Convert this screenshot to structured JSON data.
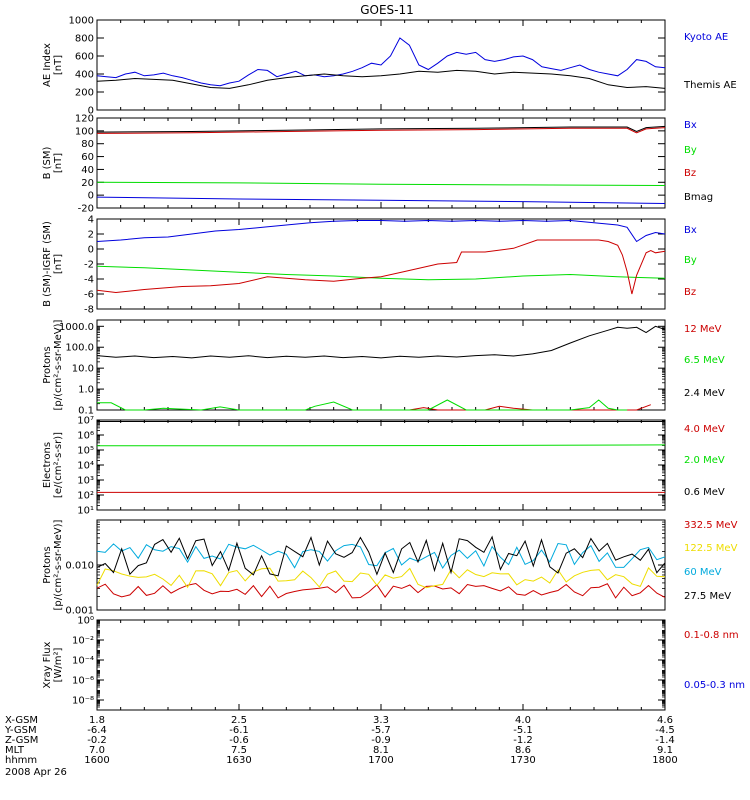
{
  "title": "GOES-11",
  "colors": {
    "black": "#000000",
    "blue": "#0000dd",
    "red": "#cc0000",
    "green": "#00dd00",
    "yellow": "#eedd00",
    "cyan": "#00aadd"
  },
  "chart_data": [
    {
      "type": "line",
      "id": "ae",
      "ylabel": [
        "AE Index",
        "[nT]"
      ],
      "ylim": [
        0,
        1000
      ],
      "scale": "linear",
      "yticks": [
        0,
        200,
        400,
        600,
        800,
        1000
      ],
      "yticklabels": [
        "0",
        "200",
        "400",
        "600",
        "800",
        "1000"
      ],
      "series": [
        {
          "name": "Kyoto AE",
          "color": "blue",
          "x": [
            0,
            2,
            4,
            6,
            8,
            10,
            12,
            14,
            16,
            18,
            20,
            22,
            24,
            26,
            28,
            30,
            32,
            34,
            36,
            38,
            40,
            42,
            44,
            46,
            48,
            50,
            52,
            54,
            56,
            58,
            60,
            62,
            64,
            66,
            68,
            70,
            72,
            74,
            76,
            78,
            80,
            82,
            84,
            86,
            88,
            90,
            92,
            94,
            96,
            98,
            100,
            102,
            104,
            106,
            108,
            110,
            112,
            114,
            116,
            118,
            120
          ],
          "y": [
            380,
            370,
            360,
            400,
            420,
            380,
            390,
            410,
            380,
            360,
            330,
            300,
            280,
            270,
            300,
            320,
            390,
            450,
            440,
            370,
            400,
            430,
            380,
            390,
            370,
            380,
            400,
            430,
            470,
            520,
            500,
            600,
            800,
            720,
            500,
            450,
            520,
            600,
            640,
            620,
            640,
            560,
            540,
            560,
            590,
            600,
            560,
            480,
            460,
            440,
            470,
            500,
            450,
            420,
            400,
            380,
            450,
            560,
            540,
            480,
            470
          ]
        },
        {
          "name": "Themis AE",
          "color": "black",
          "x": [
            0,
            4,
            8,
            12,
            16,
            20,
            24,
            28,
            32,
            36,
            40,
            44,
            48,
            52,
            56,
            60,
            64,
            68,
            72,
            76,
            80,
            84,
            88,
            92,
            96,
            100,
            104,
            108,
            112,
            116,
            120
          ],
          "y": [
            320,
            330,
            350,
            340,
            330,
            290,
            250,
            240,
            280,
            330,
            360,
            380,
            400,
            380,
            370,
            380,
            400,
            430,
            420,
            440,
            430,
            400,
            420,
            410,
            400,
            380,
            350,
            280,
            250,
            260,
            240
          ]
        }
      ]
    },
    {
      "type": "line",
      "id": "bsm",
      "ylabel": [
        "B (SM)",
        "[nT]"
      ],
      "ylim": [
        -20,
        120
      ],
      "scale": "linear",
      "yticks": [
        -20,
        0,
        20,
        40,
        60,
        80,
        100,
        120
      ],
      "yticklabels": [
        "-20",
        "0",
        "20",
        "40",
        "60",
        "80",
        "100",
        "120"
      ],
      "series": [
        {
          "name": "Bx",
          "color": "blue",
          "x": [
            0,
            30,
            60,
            90,
            120
          ],
          "y": [
            -3,
            -6,
            -8,
            -10,
            -13
          ]
        },
        {
          "name": "By",
          "color": "green",
          "x": [
            0,
            30,
            60,
            90,
            120
          ],
          "y": [
            20,
            19,
            17,
            16,
            15
          ]
        },
        {
          "name": "Bz",
          "color": "red",
          "x": [
            0,
            20,
            40,
            60,
            80,
            100,
            112,
            114,
            116,
            118,
            120
          ],
          "y": [
            96,
            97,
            99,
            101,
            102,
            104,
            104,
            97,
            103,
            104,
            105
          ]
        },
        {
          "name": "Bmag",
          "color": "black",
          "x": [
            0,
            20,
            40,
            60,
            80,
            100,
            112,
            114,
            116,
            118,
            120
          ],
          "y": [
            98,
            99,
            101,
            103,
            104,
            106,
            106,
            99,
            105,
            106,
            107
          ]
        }
      ]
    },
    {
      "type": "line",
      "id": "bigrf",
      "ylabel": [
        "B (SM)-IGRF (SM)",
        "[nT]"
      ],
      "ylim": [
        -8,
        4
      ],
      "scale": "linear",
      "yticks": [
        -8,
        -6,
        -4,
        -2,
        0,
        2,
        4
      ],
      "yticklabels": [
        "-8",
        "-6",
        "-4",
        "-2",
        "0",
        "2",
        "4"
      ],
      "series": [
        {
          "name": "Bx",
          "color": "blue",
          "x": [
            0,
            5,
            10,
            15,
            20,
            25,
            30,
            35,
            40,
            45,
            50,
            55,
            60,
            65,
            70,
            75,
            80,
            85,
            90,
            95,
            100,
            105,
            110,
            112,
            114,
            116,
            118,
            120
          ],
          "y": [
            1.0,
            1.2,
            1.5,
            1.6,
            2.0,
            2.4,
            2.6,
            2.9,
            3.2,
            3.5,
            3.7,
            3.8,
            3.8,
            3.7,
            3.8,
            3.7,
            3.8,
            3.7,
            3.8,
            3.7,
            3.8,
            3.5,
            3.2,
            2.9,
            1.0,
            1.8,
            2.2,
            2.0
          ]
        },
        {
          "name": "By",
          "color": "green",
          "x": [
            0,
            10,
            20,
            30,
            40,
            50,
            60,
            70,
            80,
            90,
            100,
            110,
            120
          ],
          "y": [
            -2.3,
            -2.5,
            -2.8,
            -3.1,
            -3.4,
            -3.6,
            -3.9,
            -4.1,
            -4.0,
            -3.6,
            -3.4,
            -3.7,
            -3.9
          ]
        },
        {
          "name": "Bz",
          "color": "red",
          "x": [
            0,
            4,
            10,
            18,
            24,
            30,
            36,
            44,
            50,
            56,
            60,
            65,
            72,
            76,
            77,
            82,
            88,
            93,
            100,
            104,
            106,
            108,
            110,
            111,
            112,
            113,
            114,
            116,
            117,
            118,
            120
          ],
          "y": [
            -5.5,
            -5.8,
            -5.4,
            -5.0,
            -4.9,
            -4.6,
            -3.7,
            -4.1,
            -4.3,
            -3.9,
            -3.7,
            -3.0,
            -2.0,
            -1.8,
            -0.4,
            -0.4,
            0.1,
            1.2,
            1.2,
            1.2,
            1.2,
            1.0,
            0.5,
            -0.8,
            -3.0,
            -6.0,
            -3.5,
            -0.5,
            -0.2,
            -0.5,
            -0.3
          ]
        }
      ]
    },
    {
      "type": "line",
      "id": "protons1",
      "ylabel": [
        "Protons",
        "[p/(cm²-s-sr-MeV)]"
      ],
      "ylim": [
        0.1,
        2000
      ],
      "scale": "log",
      "yticks": [
        0.1,
        1,
        10,
        100,
        1000
      ],
      "yticklabels": [
        "0.1",
        "1.0",
        "10.0",
        "100.0",
        "1000.0"
      ],
      "series": [
        {
          "name": "12 MeV",
          "color": "red",
          "x": [
            66,
            69,
            72,
            82,
            85,
            88,
            92,
            98,
            114,
            117
          ],
          "y": [
            0.1,
            0.13,
            0.1,
            0.1,
            0.15,
            0.12,
            0.1,
            0.1,
            0.1,
            0.18
          ]
        },
        {
          "name": "6.5 MeV",
          "color": "green",
          "x": [
            0,
            3,
            6,
            10,
            14,
            22,
            26,
            30,
            34,
            38,
            44,
            46,
            50,
            54,
            58,
            62,
            66,
            70,
            74,
            78,
            82,
            86,
            90,
            94,
            100,
            104,
            106,
            108,
            110,
            112
          ],
          "y": [
            0.22,
            0.22,
            0.1,
            0.1,
            0.12,
            0.1,
            0.14,
            0.1,
            0.1,
            0.1,
            0.1,
            0.15,
            0.24,
            0.1,
            0.1,
            0.1,
            0.1,
            0.1,
            0.3,
            0.1,
            0.1,
            0.1,
            0.1,
            0.1,
            0.1,
            0.13,
            0.3,
            0.12,
            0.1,
            0.1
          ]
        },
        {
          "name": "2.4 MeV",
          "color": "black",
          "x": [
            0,
            4,
            8,
            12,
            16,
            20,
            24,
            28,
            32,
            36,
            40,
            44,
            48,
            52,
            56,
            60,
            64,
            68,
            72,
            76,
            80,
            84,
            88,
            92,
            96,
            100,
            104,
            108,
            110,
            112,
            114,
            116,
            118,
            120
          ],
          "y": [
            40,
            33,
            38,
            32,
            36,
            31,
            38,
            33,
            39,
            32,
            37,
            33,
            38,
            32,
            36,
            31,
            37,
            33,
            38,
            34,
            40,
            44,
            38,
            48,
            70,
            160,
            350,
            650,
            900,
            800,
            900,
            500,
            1000,
            700
          ]
        }
      ]
    },
    {
      "type": "line",
      "id": "electrons",
      "ylabel": [
        "Electrons",
        "[e/(cm²-s-sr)]"
      ],
      "ylim": [
        10,
        10000000.0
      ],
      "scale": "log",
      "yticks": [
        10,
        100,
        1000,
        10000,
        100000,
        1000000,
        10000000
      ],
      "yticklabels": [
        "10¹",
        "10²",
        "10³",
        "10⁴",
        "10⁵",
        "10⁶",
        "10⁷"
      ],
      "series": [
        {
          "name": "4.0 MeV",
          "color": "red",
          "x": [
            0,
            120
          ],
          "y": [
            150,
            150
          ]
        },
        {
          "name": "2.0 MeV",
          "color": "green",
          "x": [
            0,
            40,
            80,
            120
          ],
          "y": [
            190000.0,
            190000.0,
            200000.0,
            220000.0
          ]
        },
        {
          "name": "0.6 MeV",
          "color": "black",
          "x": [
            0,
            120
          ],
          "y": [
            8000000.0,
            8000000.0
          ]
        }
      ]
    },
    {
      "type": "line",
      "id": "protons2",
      "ylabel": [
        "Protons",
        "[p/(cm²-s-sr-MeV)]"
      ],
      "ylim": [
        0.001,
        0.1
      ],
      "scale": "log",
      "yticks": [
        0.001,
        0.01
      ],
      "yticklabels": [
        "0.001",
        "0.010"
      ],
      "series": [
        {
          "name": "332.5 MeV",
          "color": "red",
          "seed": 11,
          "base": 0.0027,
          "amp": 0.35,
          "n": 70
        },
        {
          "name": "122.5 MeV",
          "color": "yellow",
          "seed": 23,
          "base": 0.0052,
          "amp": 0.45,
          "n": 70
        },
        {
          "name": "60 MeV",
          "color": "cyan",
          "seed": 37,
          "base": 0.016,
          "amp": 0.55,
          "n": 70
        },
        {
          "name": "27.5 MeV",
          "color": "black",
          "seed": 51,
          "base": 0.015,
          "amp": 0.9,
          "n": 70
        }
      ]
    },
    {
      "type": "line",
      "id": "xray",
      "ylabel": [
        "Xray Flux",
        "[W/m²]"
      ],
      "ylim": [
        1e-09,
        1
      ],
      "scale": "log",
      "yticks": [
        1e-08,
        1e-06,
        0.0001,
        0.01,
        1
      ],
      "yticklabels": [
        "10⁻⁸",
        "10⁻⁶",
        "10⁻⁴",
        "10⁻²",
        "10⁰"
      ],
      "series": [
        {
          "name": "0.1-0.8 nm",
          "color": "red",
          "x": [],
          "y": []
        },
        {
          "name": "0.05-0.3 nm",
          "color": "blue",
          "x": [],
          "y": []
        }
      ]
    }
  ],
  "footer": {
    "rows": [
      {
        "label": "X-GSM",
        "values": [
          "1.8",
          "2.5",
          "3.3",
          "4.0",
          "4.6"
        ]
      },
      {
        "label": "Y-GSM",
        "values": [
          "-6.4",
          "-6.1",
          "-5.7",
          "-5.1",
          "-4.5"
        ]
      },
      {
        "label": "Z-GSM",
        "values": [
          "-0.2",
          "-0.6",
          "-0.9",
          "-1.2",
          "-1.4"
        ]
      },
      {
        "label": "MLT",
        "values": [
          "7.0",
          "7.5",
          "8.1",
          "8.6",
          "9.1"
        ]
      },
      {
        "label": "hhmm",
        "values": [
          "1600",
          "1630",
          "1700",
          "1730",
          "1800"
        ]
      }
    ],
    "date": "2008 Apr 26"
  }
}
